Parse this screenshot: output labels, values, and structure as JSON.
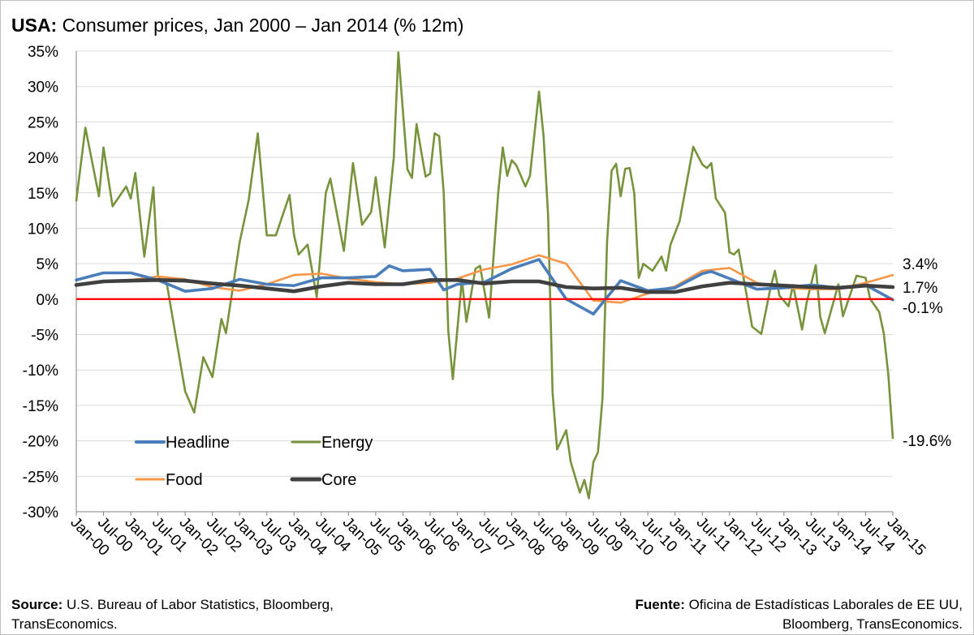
{
  "title": {
    "bold": "USA:",
    "text": "Consumer prices, Jan 2000 – Jan 2014 (% 12m)"
  },
  "source_left": {
    "bold": "Source:",
    "line1": "U.S. Bureau of Labor Statistics, Bloomberg,",
    "line2": "TransEconomics."
  },
  "source_right": {
    "bold": "Fuente:",
    "line1": "Oficina de Estadísticas Laborales de EE UU,",
    "line2": "Bloomberg, TransEconomics."
  },
  "colors": {
    "headline": "#4a7ebb",
    "energy": "#77933c",
    "food": "#f79646",
    "core": "#404040",
    "zero_line": "#ff0000",
    "grid": "#d9d9d9"
  },
  "chart_data": {
    "type": "line",
    "title": "USA: Consumer prices, Jan 2000 – Jan 2014 (% 12m)",
    "ylim": [
      -30,
      35
    ],
    "y_step": 5,
    "y_tick_labels": [
      "35%",
      "30%",
      "25%",
      "20%",
      "15%",
      "10%",
      "5%",
      "0%",
      "-5%",
      "-10%",
      "-15%",
      "-20%",
      "-25%",
      "-30%"
    ],
    "x_tick_labels": [
      "Jan-00",
      "Jul-00",
      "Jan-01",
      "Jul-01",
      "Jan-02",
      "Jul-02",
      "Jan-03",
      "Jul-03",
      "Jan-04",
      "Jul-04",
      "Jan-05",
      "Jul-05",
      "Jan-06",
      "Jul-06",
      "Jan-07",
      "Jul-07",
      "Jan-08",
      "Jul-08",
      "Jan-09",
      "Jul-09",
      "Jan-10",
      "Jul-10",
      "Jan-11",
      "Jul-11",
      "Jan-12",
      "Jul-12",
      "Jan-13",
      "Jul-13",
      "Jan-14",
      "Jul-14",
      "Jan-15"
    ],
    "grid": "horizontal",
    "legend": "bottom-left, inside plot",
    "end_labels": [
      "3.4%",
      "1.7%",
      "-0.1%",
      "-19.6%"
    ],
    "series": [
      {
        "name": "Headline",
        "key": "headline",
        "points": [
          [
            "Jan-00",
            2.7
          ],
          [
            "Jul-00",
            3.7
          ],
          [
            "Jan-01",
            3.7
          ],
          [
            "Jul-01",
            2.7
          ],
          [
            "Jan-02",
            1.1
          ],
          [
            "Jul-02",
            1.5
          ],
          [
            "Jan-03",
            2.8
          ],
          [
            "Jul-03",
            2.1
          ],
          [
            "Jan-04",
            1.9
          ],
          [
            "Jul-04",
            3.0
          ],
          [
            "Jan-05",
            3.0
          ],
          [
            "Jul-05",
            3.2
          ],
          [
            "Oct-05",
            4.7
          ],
          [
            "Jan-06",
            4.0
          ],
          [
            "Jul-06",
            4.2
          ],
          [
            "Oct-06",
            1.3
          ],
          [
            "Jan-07",
            2.1
          ],
          [
            "Jul-07",
            2.4
          ],
          [
            "Jan-08",
            4.3
          ],
          [
            "Jul-08",
            5.6
          ],
          [
            "Jan-09",
            0.0
          ],
          [
            "Jul-09",
            -2.1
          ],
          [
            "Jan-10",
            2.6
          ],
          [
            "Jul-10",
            1.2
          ],
          [
            "Jan-11",
            1.6
          ],
          [
            "Jul-11",
            3.6
          ],
          [
            "Sep-11",
            3.9
          ],
          [
            "Jan-12",
            2.9
          ],
          [
            "Jul-12",
            1.4
          ],
          [
            "Jan-13",
            1.6
          ],
          [
            "Jul-13",
            2.0
          ],
          [
            "Jan-14",
            1.6
          ],
          [
            "Jul-14",
            2.0
          ],
          [
            "Jan-15",
            -0.1
          ]
        ]
      },
      {
        "name": "Energy",
        "key": "energy",
        "points": [
          [
            "Jan-00",
            13.9
          ],
          [
            "Mar-00",
            24.2
          ],
          [
            "Jun-00",
            14.5
          ],
          [
            "Jul-00",
            21.4
          ],
          [
            "Sep-00",
            13.1
          ],
          [
            "Dec-00",
            15.9
          ],
          [
            "Jan-01",
            14.2
          ],
          [
            "Feb-01",
            17.8
          ],
          [
            "Apr-01",
            6.0
          ],
          [
            "Jun-01",
            15.8
          ],
          [
            "Jul-01",
            3.2
          ],
          [
            "Sep-01",
            2.0
          ],
          [
            "Jan-02",
            -13.0
          ],
          [
            "Mar-02",
            -16.0
          ],
          [
            "May-02",
            -8.2
          ],
          [
            "Jul-02",
            -11.0
          ],
          [
            "Sep-02",
            -2.8
          ],
          [
            "Oct-02",
            -4.8
          ],
          [
            "Jan-03",
            8.0
          ],
          [
            "Mar-03",
            14.0
          ],
          [
            "May-03",
            23.4
          ],
          [
            "Jul-03",
            9.0
          ],
          [
            "Sep-03",
            9.0
          ],
          [
            "Dec-03",
            14.7
          ],
          [
            "Jan-04",
            9.0
          ],
          [
            "Feb-04",
            6.3
          ],
          [
            "Apr-04",
            7.7
          ],
          [
            "Jun-04",
            0.3
          ],
          [
            "Aug-04",
            15.0
          ],
          [
            "Sep-04",
            17.0
          ],
          [
            "Dec-04",
            6.8
          ],
          [
            "Feb-05",
            19.2
          ],
          [
            "Apr-05",
            10.5
          ],
          [
            "Jun-05",
            12.3
          ],
          [
            "Jul-05",
            17.2
          ],
          [
            "Sep-05",
            7.3
          ],
          [
            "Nov-05",
            20.0
          ],
          [
            "Dec-05",
            34.8
          ],
          [
            "Feb-06",
            18.3
          ],
          [
            "Mar-06",
            17.1
          ],
          [
            "Apr-06",
            24.7
          ],
          [
            "Jun-06",
            17.3
          ],
          [
            "Jul-06",
            17.7
          ],
          [
            "Aug-06",
            23.4
          ],
          [
            "Sep-06",
            23.0
          ],
          [
            "Oct-06",
            15.0
          ],
          [
            "Nov-06",
            -4.5
          ],
          [
            "Dec-06",
            -11.3
          ],
          [
            "Feb-07",
            2.8
          ],
          [
            "Mar-07",
            -3.2
          ],
          [
            "May-07",
            4.3
          ],
          [
            "Jun-07",
            4.7
          ],
          [
            "Aug-07",
            -2.6
          ],
          [
            "Oct-07",
            15.0
          ],
          [
            "Nov-07",
            21.4
          ],
          [
            "Dec-07",
            17.4
          ],
          [
            "Jan-08",
            19.6
          ],
          [
            "Feb-08",
            18.9
          ],
          [
            "Apr-08",
            15.9
          ],
          [
            "May-08",
            17.4
          ],
          [
            "Jul-08",
            29.3
          ],
          [
            "Aug-08",
            23.0
          ],
          [
            "Sep-08",
            12.0
          ],
          [
            "Oct-08",
            -13.2
          ],
          [
            "Nov-08",
            -21.2
          ],
          [
            "Jan-09",
            -18.5
          ],
          [
            "Feb-09",
            -23.0
          ],
          [
            "Apr-09",
            -27.3
          ],
          [
            "May-09",
            -25.5
          ],
          [
            "Jun-09",
            -28.1
          ],
          [
            "Jul-09",
            -23.0
          ],
          [
            "Aug-09",
            -21.6
          ],
          [
            "Sep-09",
            -14.0
          ],
          [
            "Oct-09",
            8.0
          ],
          [
            "Nov-09",
            18.1
          ],
          [
            "Dec-09",
            19.1
          ],
          [
            "Jan-10",
            14.5
          ],
          [
            "Feb-10",
            18.4
          ],
          [
            "Mar-10",
            18.5
          ],
          [
            "Apr-10",
            15.0
          ],
          [
            "May-10",
            3.0
          ],
          [
            "Jun-10",
            5.0
          ],
          [
            "Aug-10",
            4.0
          ],
          [
            "Oct-10",
            6.0
          ],
          [
            "Nov-10",
            4.0
          ],
          [
            "Dec-10",
            7.7
          ],
          [
            "Feb-11",
            11.0
          ],
          [
            "Apr-11",
            18.0
          ],
          [
            "May-11",
            21.5
          ],
          [
            "Jul-11",
            19.0
          ],
          [
            "Aug-11",
            18.5
          ],
          [
            "Sep-11",
            19.2
          ],
          [
            "Oct-11",
            14.2
          ],
          [
            "Dec-11",
            12.2
          ],
          [
            "Jan-12",
            6.6
          ],
          [
            "Feb-12",
            6.3
          ],
          [
            "Mar-12",
            7.0
          ],
          [
            "Jun-12",
            -3.9
          ],
          [
            "Aug-12",
            -4.9
          ],
          [
            "Oct-12",
            1.5
          ],
          [
            "Nov-12",
            4.0
          ],
          [
            "Dec-12",
            0.5
          ],
          [
            "Feb-13",
            -1.0
          ],
          [
            "Mar-13",
            2.0
          ],
          [
            "May-13",
            -4.3
          ],
          [
            "Jun-13",
            -0.5
          ],
          [
            "Aug-13",
            4.8
          ],
          [
            "Sep-13",
            -2.5
          ],
          [
            "Oct-13",
            -4.8
          ],
          [
            "Jan-14",
            2.1
          ],
          [
            "Feb-14",
            -2.4
          ],
          [
            "May-14",
            3.3
          ],
          [
            "Jul-14",
            3.0
          ],
          [
            "Aug-14",
            0.0
          ],
          [
            "Oct-14",
            -1.8
          ],
          [
            "Nov-14",
            -4.8
          ],
          [
            "Dec-14",
            -10.6
          ],
          [
            "Jan-15",
            -19.6
          ]
        ]
      },
      {
        "name": "Food",
        "key": "food",
        "points": [
          [
            "Jan-00",
            2.0
          ],
          [
            "Jul-00",
            2.4
          ],
          [
            "Jan-01",
            2.7
          ],
          [
            "Jul-01",
            3.2
          ],
          [
            "Jan-02",
            2.8
          ],
          [
            "Jul-02",
            1.7
          ],
          [
            "Jan-03",
            1.2
          ],
          [
            "Jul-03",
            2.1
          ],
          [
            "Jan-04",
            3.4
          ],
          [
            "Jul-04",
            3.6
          ],
          [
            "Jan-05",
            2.9
          ],
          [
            "Jul-05",
            2.4
          ],
          [
            "Jan-06",
            2.1
          ],
          [
            "Jul-06",
            2.3
          ],
          [
            "Jan-07",
            2.9
          ],
          [
            "Jul-07",
            4.2
          ],
          [
            "Jan-08",
            4.9
          ],
          [
            "Jul-08",
            6.2
          ],
          [
            "Jan-09",
            5.0
          ],
          [
            "Jul-09",
            -0.2
          ],
          [
            "Jan-10",
            -0.5
          ],
          [
            "Jul-10",
            0.8
          ],
          [
            "Jan-11",
            1.8
          ],
          [
            "Jul-11",
            4.0
          ],
          [
            "Jan-12",
            4.4
          ],
          [
            "Jul-12",
            2.3
          ],
          [
            "Jan-13",
            1.6
          ],
          [
            "Jul-13",
            1.4
          ],
          [
            "Jan-14",
            1.4
          ],
          [
            "Jul-14",
            2.3
          ],
          [
            "Jan-15",
            3.4
          ]
        ]
      },
      {
        "name": "Core",
        "key": "core",
        "points": [
          [
            "Jan-00",
            2.0
          ],
          [
            "Jul-00",
            2.5
          ],
          [
            "Jan-01",
            2.6
          ],
          [
            "Jul-01",
            2.7
          ],
          [
            "Jan-02",
            2.6
          ],
          [
            "Jul-02",
            2.2
          ],
          [
            "Jan-03",
            1.9
          ],
          [
            "Jul-03",
            1.5
          ],
          [
            "Jan-04",
            1.1
          ],
          [
            "Jul-04",
            1.8
          ],
          [
            "Jan-05",
            2.3
          ],
          [
            "Jul-05",
            2.1
          ],
          [
            "Jan-06",
            2.1
          ],
          [
            "Jul-06",
            2.7
          ],
          [
            "Jan-07",
            2.7
          ],
          [
            "Jul-07",
            2.2
          ],
          [
            "Jan-08",
            2.5
          ],
          [
            "Jul-08",
            2.5
          ],
          [
            "Jan-09",
            1.7
          ],
          [
            "Jul-09",
            1.5
          ],
          [
            "Jan-10",
            1.6
          ],
          [
            "Jul-10",
            1.0
          ],
          [
            "Jan-11",
            1.0
          ],
          [
            "Jul-11",
            1.8
          ],
          [
            "Jan-12",
            2.3
          ],
          [
            "Jul-12",
            2.1
          ],
          [
            "Jan-13",
            1.9
          ],
          [
            "Jul-13",
            1.7
          ],
          [
            "Jan-14",
            1.6
          ],
          [
            "Jul-14",
            1.9
          ],
          [
            "Jan-15",
            1.7
          ]
        ]
      }
    ]
  }
}
